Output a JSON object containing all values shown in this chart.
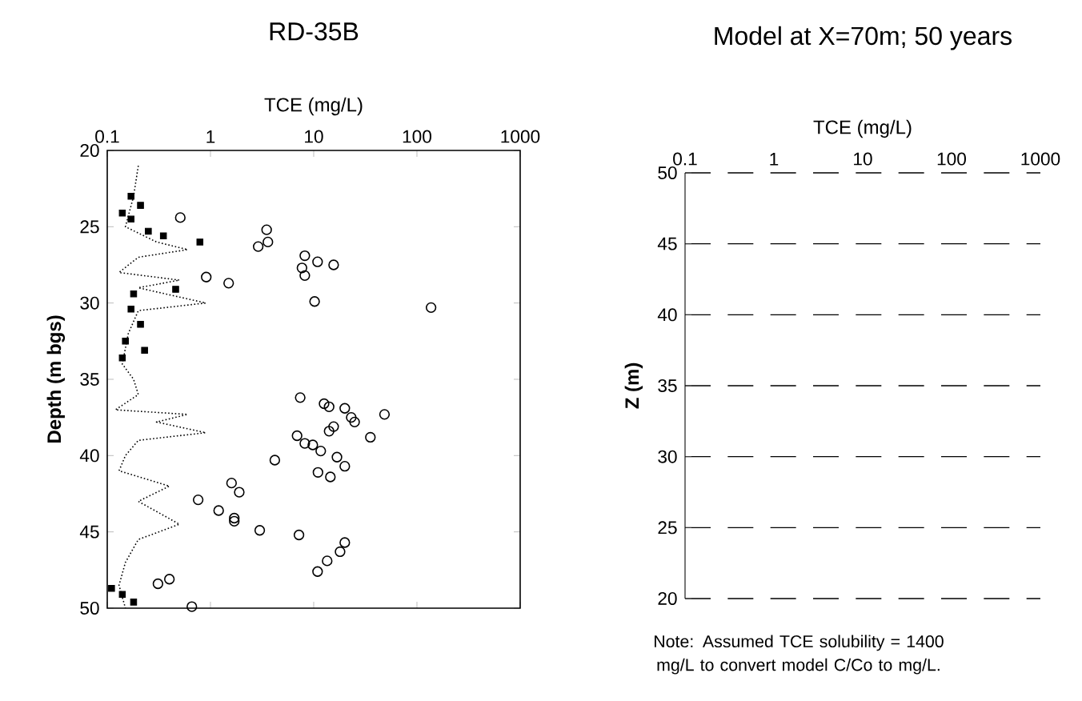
{
  "chart_data": [
    {
      "type": "scatter",
      "title": "RD-35B",
      "xlabel": "TCE (mg/L)",
      "ylabel": "Depth (m bgs)",
      "log": "x",
      "grid": false,
      "xlim": [
        0.1,
        1000
      ],
      "xticks": [
        0.1,
        1,
        10,
        100,
        1000
      ],
      "ylim": [
        50,
        20
      ],
      "yticks": [
        20,
        25,
        30,
        35,
        40,
        45,
        50
      ],
      "series": [
        {
          "type": "scatter",
          "marker": "circle",
          "color": "#000000",
          "x": [
            0.51,
            3.5,
            3.6,
            2.9,
            8.2,
            10.9,
            15.6,
            7.7,
            8.2,
            0.91,
            1.5,
            10.2,
            137,
            7.4,
            12.6,
            14.1,
            20,
            23.1,
            24.9,
            48.5,
            15.6,
            14.1,
            35.4,
            6.9,
            8.2,
            9.8,
            11.7,
            4.2,
            16.8,
            20,
            11,
            14.5,
            1.6,
            1.9,
            0.76,
            1.2,
            1.7,
            1.7,
            3.0,
            7.2,
            20,
            18,
            13.5,
            10.9,
            0.4,
            0.31,
            0.66
          ],
          "values": [
            24.4,
            25.2,
            26.0,
            26.3,
            26.9,
            27.3,
            27.5,
            27.7,
            28.2,
            28.3,
            28.7,
            29.9,
            30.3,
            36.2,
            36.6,
            36.8,
            36.9,
            37.5,
            37.8,
            37.3,
            38.1,
            38.4,
            38.8,
            38.7,
            39.2,
            39.3,
            39.7,
            40.3,
            40.1,
            40.7,
            41.1,
            41.4,
            41.8,
            42.4,
            42.9,
            43.6,
            44.1,
            44.3,
            44.9,
            45.2,
            45.7,
            46.3,
            46.9,
            47.6,
            48.1,
            48.4,
            49.9
          ]
        },
        {
          "type": "scatter",
          "marker": "square",
          "color": "#000000",
          "x": [
            0.17,
            0.21,
            0.14,
            0.17,
            0.25,
            0.35,
            0.79,
            0.46,
            0.18,
            0.17,
            0.21,
            0.15,
            0.23,
            0.14,
            0.11,
            0.14,
            0.18
          ],
          "values": [
            23.0,
            23.6,
            24.1,
            24.5,
            25.3,
            25.6,
            26.0,
            29.1,
            29.4,
            30.4,
            31.4,
            32.5,
            33.1,
            33.6,
            48.7,
            49.1,
            49.6
          ]
        },
        {
          "type": "line",
          "marker": "none",
          "line_style": "dotted",
          "color": "#000000",
          "x": [
            0.2,
            0.18,
            0.15,
            0.3,
            0.6,
            0.2,
            0.13,
            0.5,
            0.2,
            0.9,
            0.2,
            0.16,
            0.14,
            0.18,
            0.2,
            0.12,
            0.6,
            0.3,
            0.9,
            0.2,
            0.15,
            0.13,
            0.4,
            0.2,
            0.5,
            0.2,
            0.15,
            0.13,
            0.15
          ],
          "values": [
            21,
            23,
            25,
            26,
            26.5,
            27,
            28,
            28.5,
            29,
            30,
            30.5,
            32,
            34,
            35,
            36,
            37,
            37.3,
            37.8,
            38.5,
            39,
            40,
            41,
            42,
            43,
            44.5,
            45.5,
            47,
            48.5,
            50
          ]
        }
      ]
    },
    {
      "type": "scatter",
      "title": "Model at X=70m; 50 years",
      "xlabel": "TCE (mg/L)",
      "ylabel": "Z (m)",
      "log": "x",
      "grid": "y",
      "xlim": [
        0.1,
        1000
      ],
      "xticks": [
        0.1,
        1,
        10,
        100,
        1000
      ],
      "ylim": [
        20,
        50
      ],
      "yticks": [
        20,
        25,
        30,
        35,
        40,
        45,
        50
      ],
      "annotations": [
        "Note: Assumed TCE solubility = 1400 mg/L to convert model C/Co to mg/L."
      ]
    }
  ]
}
